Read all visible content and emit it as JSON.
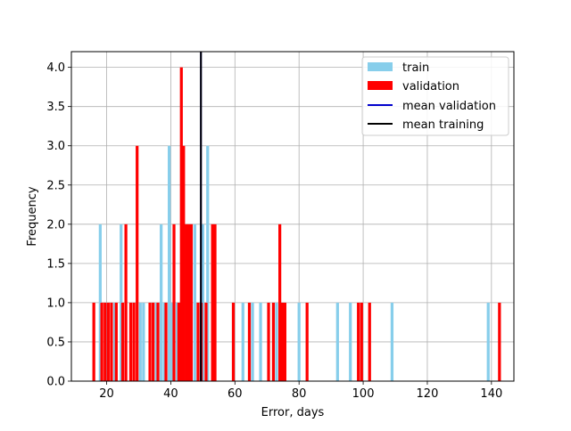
{
  "chart_data": {
    "type": "bar",
    "xlabel": "Error, days",
    "ylabel": "Frequency",
    "xlim": [
      9,
      147
    ],
    "ylim": [
      0,
      4.2
    ],
    "xticks": [
      20,
      40,
      60,
      80,
      100,
      120,
      140
    ],
    "yticks": [
      0.0,
      0.5,
      1.0,
      1.5,
      2.0,
      2.5,
      3.0,
      3.5,
      4.0
    ],
    "xtick_labels": [
      "20",
      "40",
      "60",
      "80",
      "100",
      "120",
      "140"
    ],
    "ytick_labels": [
      "0.0",
      "0.5",
      "1.0",
      "1.5",
      "2.0",
      "2.5",
      "3.0",
      "3.5",
      "4.0"
    ],
    "grid": true,
    "legend_position": "top-right",
    "bin_width": 0.9,
    "series": [
      {
        "name": "train",
        "color": "#87ceeb",
        "bins": [
          {
            "x": 18.0,
            "y": 2
          },
          {
            "x": 20.0,
            "y": 1
          },
          {
            "x": 22.5,
            "y": 1
          },
          {
            "x": 24.5,
            "y": 2
          },
          {
            "x": 30.5,
            "y": 1
          },
          {
            "x": 31.5,
            "y": 1
          },
          {
            "x": 35.5,
            "y": 1
          },
          {
            "x": 37.0,
            "y": 2
          },
          {
            "x": 38.0,
            "y": 1
          },
          {
            "x": 39.5,
            "y": 3
          },
          {
            "x": 40.5,
            "y": 1
          },
          {
            "x": 42.0,
            "y": 1
          },
          {
            "x": 45.0,
            "y": 1
          },
          {
            "x": 47.5,
            "y": 2
          },
          {
            "x": 50.0,
            "y": 2
          },
          {
            "x": 51.5,
            "y": 3
          },
          {
            "x": 62.5,
            "y": 1
          },
          {
            "x": 65.5,
            "y": 1
          },
          {
            "x": 68.0,
            "y": 1
          },
          {
            "x": 73.0,
            "y": 1
          },
          {
            "x": 80.0,
            "y": 1
          },
          {
            "x": 92.0,
            "y": 1
          },
          {
            "x": 96.0,
            "y": 1
          },
          {
            "x": 109.0,
            "y": 1
          },
          {
            "x": 139.0,
            "y": 1
          }
        ]
      },
      {
        "name": "validation",
        "color": "#ff0000",
        "bins": [
          {
            "x": 16.0,
            "y": 1
          },
          {
            "x": 18.5,
            "y": 1
          },
          {
            "x": 19.5,
            "y": 1
          },
          {
            "x": 20.5,
            "y": 1
          },
          {
            "x": 21.5,
            "y": 1
          },
          {
            "x": 23.0,
            "y": 1
          },
          {
            "x": 25.0,
            "y": 1
          },
          {
            "x": 26.0,
            "y": 2
          },
          {
            "x": 27.5,
            "y": 1
          },
          {
            "x": 28.5,
            "y": 1
          },
          {
            "x": 29.5,
            "y": 3
          },
          {
            "x": 33.5,
            "y": 1
          },
          {
            "x": 34.5,
            "y": 1
          },
          {
            "x": 36.0,
            "y": 1
          },
          {
            "x": 38.5,
            "y": 1
          },
          {
            "x": 41.0,
            "y": 2
          },
          {
            "x": 42.5,
            "y": 1
          },
          {
            "x": 43.3,
            "y": 4
          },
          {
            "x": 44.0,
            "y": 3
          },
          {
            "x": 44.8,
            "y": 2
          },
          {
            "x": 45.6,
            "y": 2
          },
          {
            "x": 46.4,
            "y": 2
          },
          {
            "x": 48.5,
            "y": 1
          },
          {
            "x": 49.5,
            "y": 1
          },
          {
            "x": 51.0,
            "y": 1
          },
          {
            "x": 53.0,
            "y": 2
          },
          {
            "x": 53.8,
            "y": 2
          },
          {
            "x": 59.5,
            "y": 1
          },
          {
            "x": 64.5,
            "y": 1
          },
          {
            "x": 70.5,
            "y": 1
          },
          {
            "x": 72.0,
            "y": 1
          },
          {
            "x": 74.0,
            "y": 2
          },
          {
            "x": 74.8,
            "y": 1
          },
          {
            "x": 75.6,
            "y": 1
          },
          {
            "x": 82.5,
            "y": 1
          },
          {
            "x": 98.5,
            "y": 1
          },
          {
            "x": 99.5,
            "y": 1
          },
          {
            "x": 102.0,
            "y": 1
          },
          {
            "x": 142.5,
            "y": 1
          }
        ]
      }
    ],
    "reference_lines": [
      {
        "name": "mean validation",
        "color": "#0000cd",
        "x": 49.4
      },
      {
        "name": "mean training",
        "color": "#000000",
        "x": 49.4
      }
    ]
  }
}
